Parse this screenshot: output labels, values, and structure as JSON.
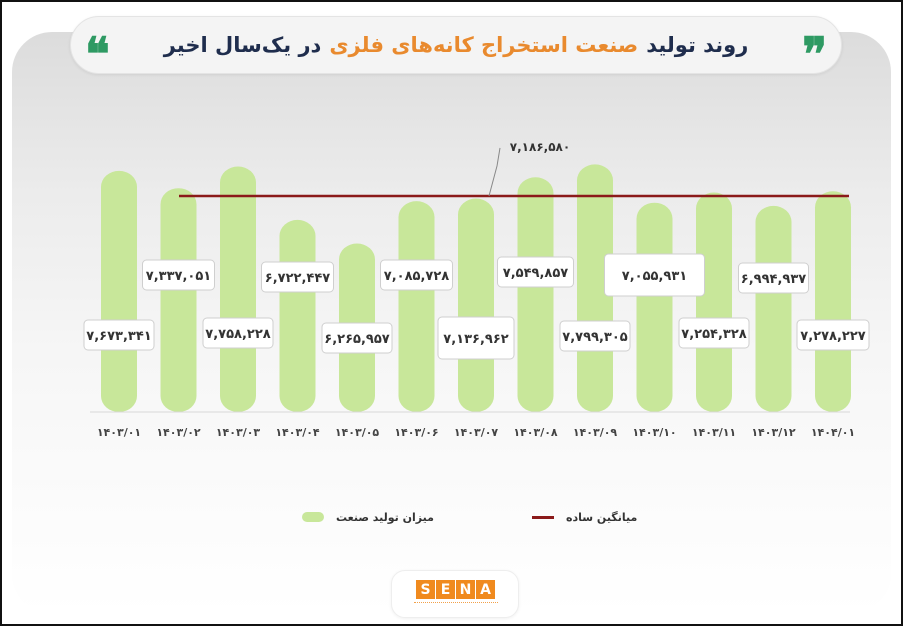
{
  "header": {
    "title_part1": "روند تولید",
    "title_part2": "صنعت استخراج کانه‌های فلزی",
    "title_part3": "در یک‌سال اخیر"
  },
  "chart_data": {
    "type": "bar",
    "categories": [
      "۱۴۰۳/۰۱",
      "۱۴۰۳/۰۲",
      "۱۴۰۳/۰۳",
      "۱۴۰۳/۰۴",
      "۱۴۰۳/۰۵",
      "۱۴۰۳/۰۶",
      "۱۴۰۳/۰۷",
      "۱۴۰۳/۰۸",
      "۱۴۰۳/۰۹",
      "۱۴۰۳/۱۰",
      "۱۴۰۳/۱۱",
      "۱۴۰۳/۱۲",
      "۱۴۰۴/۰۱"
    ],
    "series": [
      {
        "name": "میزان تولید صنعت",
        "values": [
          7673341,
          7337051,
          7758228,
          6722447,
          6265957,
          7085728,
          7136962,
          7549857,
          7799305,
          7055931,
          7254328,
          6994937,
          7278227
        ],
        "labels": [
          "۷,۶۷۳,۳۴۱",
          "۷,۳۳۷,۰۵۱",
          "۷,۷۵۸,۲۲۸",
          "۶,۷۲۲,۴۴۷",
          "۶,۲۶۵,۹۵۷",
          "۷,۰۸۵,۷۲۸",
          "۷,۱۳۶,۹۶۲",
          "۷,۵۴۹,۸۵۷",
          "۷,۷۹۹,۳۰۵",
          "۷,۰۵۵,۹۳۱",
          "۷,۲۵۴,۳۲۸",
          "۶,۹۹۴,۹۳۷",
          "۷,۲۷۸,۲۲۷"
        ],
        "color": "#c8e79a"
      }
    ],
    "average": {
      "name": "میانگین ساده",
      "value": 7186580,
      "label": "۷,۱۸۶,۵۸۰",
      "color": "#8b1a1a"
    },
    "ylim": [
      3000000,
      8000000
    ],
    "grid": false,
    "legend_position": "bottom"
  },
  "legend": {
    "series_label": "میزان تولید صنعت",
    "average_label": "میانگین ساده"
  },
  "logo": {
    "letters": [
      "S",
      "E",
      "N",
      "A"
    ],
    "brand_color": "#f08a1e"
  }
}
